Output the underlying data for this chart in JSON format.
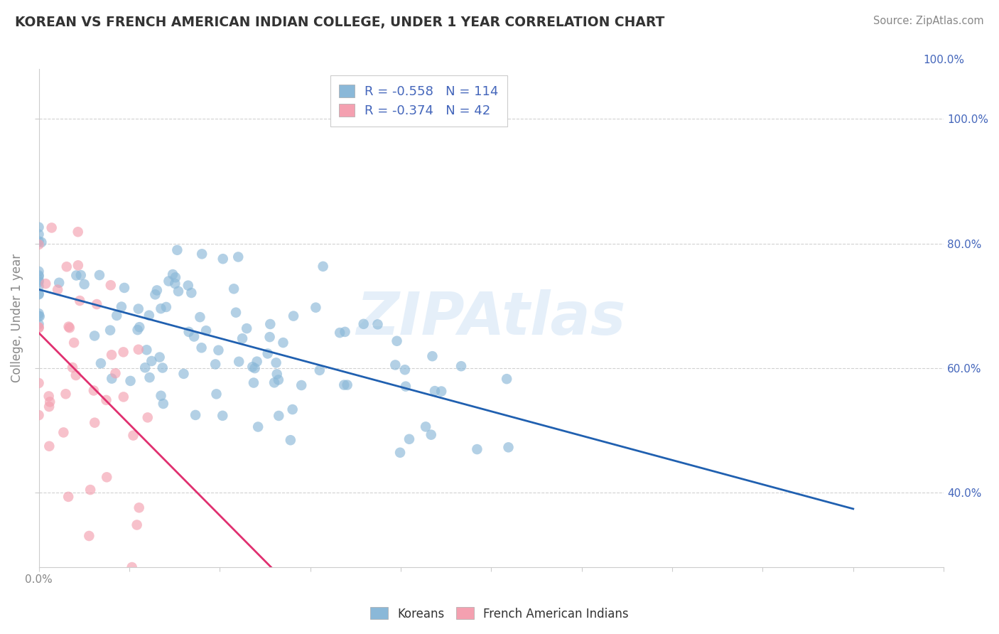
{
  "title": "KOREAN VS FRENCH AMERICAN INDIAN COLLEGE, UNDER 1 YEAR CORRELATION CHART",
  "source": "Source: ZipAtlas.com",
  "ylabel": "College, Under 1 year",
  "xlim": [
    0.0,
    1.0
  ],
  "ylim": [
    0.28,
    1.08
  ],
  "korean_color": "#8ab8d8",
  "french_color": "#f4a0b0",
  "korean_line_color": "#2060b0",
  "french_line_color": "#e03070",
  "french_dash_color": "#e8b0c0",
  "watermark": "ZIPAtlas",
  "legend_korean_r": "-0.558",
  "legend_korean_n": "114",
  "legend_french_r": "-0.374",
  "legend_french_n": "42",
  "legend_label_korean": "Koreans",
  "legend_label_french": "French American Indians",
  "korean_r": -0.558,
  "korean_n": 114,
  "french_r": -0.374,
  "french_n": 42,
  "bg_color": "#ffffff",
  "grid_color": "#cccccc",
  "title_color": "#333333",
  "source_color": "#888888",
  "axis_label_color": "#4466bb",
  "tick_color": "#888888"
}
